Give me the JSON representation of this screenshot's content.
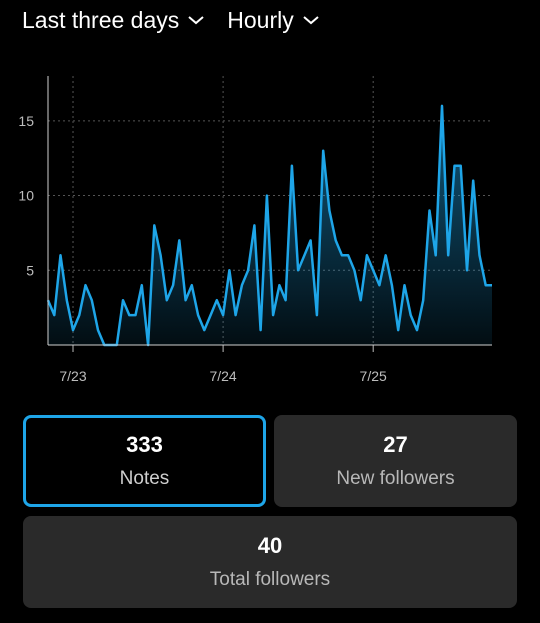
{
  "filters": {
    "range_label": "Last three days",
    "interval_label": "Hourly"
  },
  "icons": {
    "dropdown": "chevron-down-icon"
  },
  "colors": {
    "accent": "#1ea5e8",
    "card_bg": "#2a2a2a"
  },
  "chart_data": {
    "type": "area",
    "title": "",
    "xlabel": "",
    "ylabel": "",
    "ylim": [
      0,
      18
    ],
    "yticks": [
      5,
      10,
      15
    ],
    "xticks": [
      {
        "label": "7/23",
        "index": 4
      },
      {
        "label": "7/24",
        "index": 28
      },
      {
        "label": "7/25",
        "index": 52
      }
    ],
    "grid": true,
    "series": [
      {
        "values": [
          3,
          2,
          6,
          3,
          1,
          2,
          4,
          3,
          1,
          0,
          0,
          0,
          3,
          2,
          2,
          4,
          0,
          8,
          6,
          3,
          4,
          7,
          3,
          4,
          2,
          1,
          2,
          3,
          2,
          5,
          2,
          4,
          5,
          8,
          1,
          10,
          2,
          4,
          3,
          12,
          5,
          6,
          7,
          2,
          13,
          9,
          7,
          6,
          6,
          5,
          3,
          6,
          5,
          4,
          6,
          4,
          1,
          4,
          2,
          1,
          3,
          9,
          6,
          16,
          6,
          12,
          12,
          5,
          11,
          6,
          4,
          4
        ]
      }
    ]
  },
  "stats": {
    "notes": {
      "value": "333",
      "label": "Notes"
    },
    "new_followers": {
      "value": "27",
      "label": "New followers"
    },
    "total_followers": {
      "value": "40",
      "label": "Total followers"
    }
  }
}
